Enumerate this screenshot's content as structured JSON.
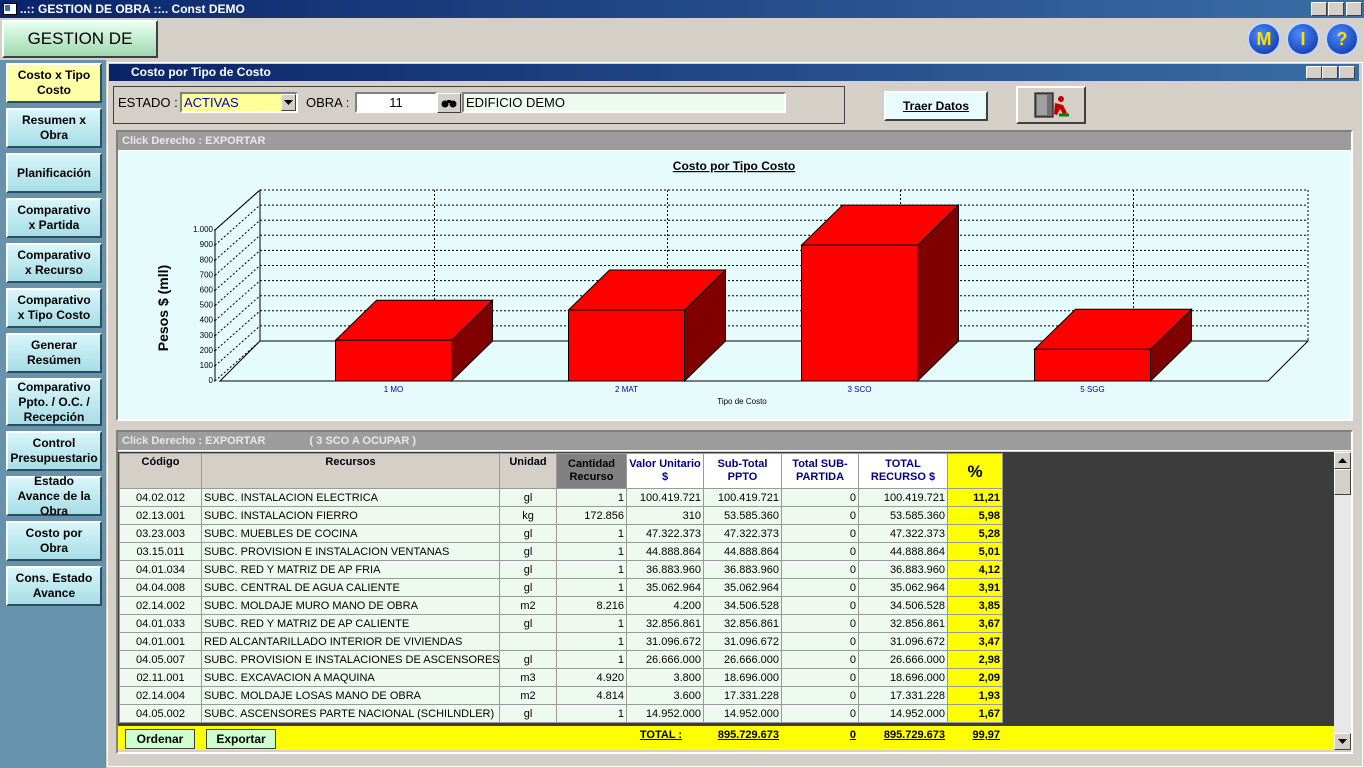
{
  "window": {
    "title": "..:: GESTION DE OBRA ::.. Const DEMO"
  },
  "toolbar": {
    "app_button": "GESTION DE OBRA",
    "icons": [
      "M",
      "I",
      "?"
    ]
  },
  "sidebar": {
    "items": [
      "Costo x Tipo Costo",
      "Resumen x Obra",
      "Planificación",
      "Comparativo x Partida",
      "Comparativo x Recurso",
      "Comparativo x Tipo Costo",
      "Generar Resúmen",
      "Comparativo Ppto. / O.C. / Recepción",
      "Control Presupuestario",
      "Estado Avance de la Obra",
      "Costo por Obra",
      "Cons. Estado Avance"
    ]
  },
  "subwindow": {
    "title": "Costo por Tipo de Costo"
  },
  "filters": {
    "estado_label": "ESTADO :",
    "estado_value": "ACTIVAS",
    "obra_label": "OBRA :",
    "obra_value": "11",
    "obra_name": "EDIFICIO DEMO",
    "button": "Traer Datos"
  },
  "chart_panel": {
    "caption": "Click Derecho : EXPORTAR"
  },
  "chart_data": {
    "type": "bar",
    "title": "Costo por Tipo Costo",
    "x_label": "Tipo de Costo",
    "y_label": "Pesos $ (mll)",
    "categories": [
      "1 MO",
      "2 MAT",
      "3 SCO",
      "5 SGG"
    ],
    "values": [
      270,
      470,
      900,
      210
    ],
    "color": "#ff0000",
    "ylim": [
      0,
      1000
    ],
    "yticks": [
      0,
      100,
      200,
      300,
      400,
      500,
      600,
      700,
      800,
      900,
      {
        "value": 1000,
        "label": "1.000"
      }
    ],
    "grid": true
  },
  "table_panel": {
    "caption": "Click Derecho : EXPORTAR",
    "selection": "( 3 SCO A OCUPAR )"
  },
  "table": {
    "headers": [
      "Código",
      "Recursos",
      "Unidad",
      "Cantidad Recurso",
      "Valor Unitario $",
      "Sub-Total PPTO",
      "Total SUB-PARTIDA",
      "TOTAL RECURSO $",
      "%"
    ],
    "rows": [
      [
        "04.02.012",
        "SUBC. INSTALACION ELECTRICA",
        "gl",
        "1",
        "100.419.721",
        "100.419.721",
        "0",
        "100.419.721",
        "11,21"
      ],
      [
        "02.13.001",
        "SUBC. INSTALACION FIERRO",
        "kg",
        "172.856",
        "310",
        "53.585.360",
        "0",
        "53.585.360",
        "5,98"
      ],
      [
        "03.23.003",
        "SUBC. MUEBLES DE COCINA",
        "gl",
        "1",
        "47.322.373",
        "47.322.373",
        "0",
        "47.322.373",
        "5,28"
      ],
      [
        "03.15.011",
        "SUBC. PROVISION E INSTALACION VENTANAS",
        "gl",
        "1",
        "44.888.864",
        "44.888.864",
        "0",
        "44.888.864",
        "5,01"
      ],
      [
        "04.01.034",
        "SUBC. RED Y MATRIZ DE AP FRIA",
        "gl",
        "1",
        "36.883.960",
        "36.883.960",
        "0",
        "36.883.960",
        "4,12"
      ],
      [
        "04.04.008",
        "SUBC. CENTRAL DE AGUA CALIENTE",
        "gl",
        "1",
        "35.062.964",
        "35.062.964",
        "0",
        "35.062.964",
        "3,91"
      ],
      [
        "02.14.002",
        "SUBC. MOLDAJE MURO MANO DE OBRA",
        "m2",
        "8.216",
        "4.200",
        "34.506.528",
        "0",
        "34.506.528",
        "3,85"
      ],
      [
        "04.01.033",
        "SUBC. RED Y MATRIZ DE AP CALIENTE",
        "gl",
        "1",
        "32.856.861",
        "32.856.861",
        "0",
        "32.856.861",
        "3,67"
      ],
      [
        "04.01.001",
        "RED ALCANTARILLADO INTERIOR DE VIVIENDAS",
        null,
        "1",
        "31.096.672",
        "31.096.672",
        "0",
        "31.096.672",
        "3,47"
      ],
      [
        "04.05.007",
        "SUBC. PROVISION E INSTALACIONES DE ASCENSORES",
        "gl",
        "1",
        "26.666.000",
        "26.666.000",
        "0",
        "26.666.000",
        "2,98"
      ],
      [
        "02.11.001",
        "SUBC. EXCAVACION A MAQUINA",
        "m3",
        "4.920",
        "3.800",
        "18.696.000",
        "0",
        "18.696.000",
        "2,09"
      ],
      [
        "02.14.004",
        "SUBC. MOLDAJE LOSAS MANO DE OBRA",
        "m2",
        "4.814",
        "3.600",
        "17.331.228",
        "0",
        "17.331.228",
        "1,93"
      ],
      [
        "04.05.002",
        "SUBC. ASCENSORES PARTE NACIONAL (SCHILNDLER)",
        "gl",
        "1",
        "14.952.000",
        "14.952.000",
        "0",
        "14.952.000",
        "1,67"
      ]
    ]
  },
  "footer": {
    "buttons": [
      "Ordenar",
      "Exportar"
    ],
    "total_label": "TOTAL :",
    "totals": [
      "895.729.673",
      "0",
      "895.729.673",
      "99,97"
    ]
  }
}
